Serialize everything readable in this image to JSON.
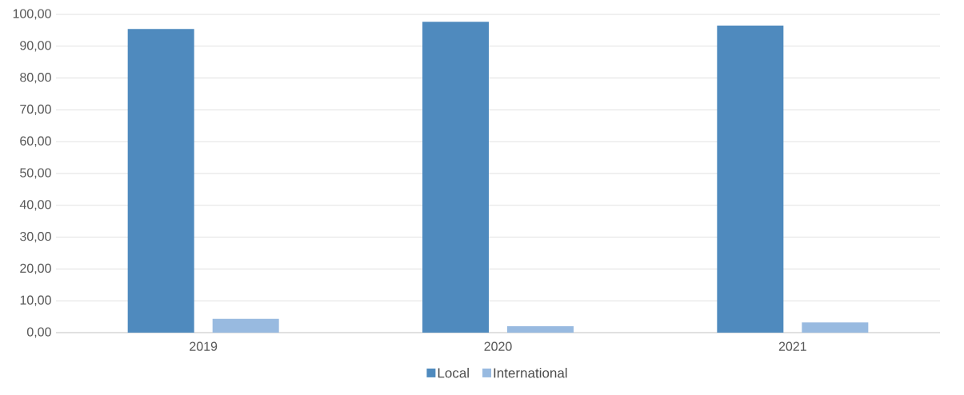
{
  "chart_data": {
    "type": "bar",
    "categories": [
      "2019",
      "2020",
      "2021"
    ],
    "series": [
      {
        "name": "Local",
        "color": "#4f8abe",
        "values": [
          95.4,
          97.7,
          96.5
        ]
      },
      {
        "name": "International",
        "color": "#98bae0",
        "values": [
          4.3,
          2.0,
          3.2
        ]
      }
    ],
    "ylim": [
      0,
      100
    ],
    "yticks": [
      {
        "value": 0,
        "label": "0,00"
      },
      {
        "value": 10,
        "label": "10,00"
      },
      {
        "value": 20,
        "label": "20,00"
      },
      {
        "value": 30,
        "label": "30,00"
      },
      {
        "value": 40,
        "label": "40,00"
      },
      {
        "value": 50,
        "label": "50,00"
      },
      {
        "value": 60,
        "label": "60,00"
      },
      {
        "value": 70,
        "label": "70,00"
      },
      {
        "value": 80,
        "label": "80,00"
      },
      {
        "value": 90,
        "label": "90,00"
      },
      {
        "value": 100,
        "label": "100,00"
      }
    ],
    "grid": "y",
    "legend": "bottom"
  }
}
